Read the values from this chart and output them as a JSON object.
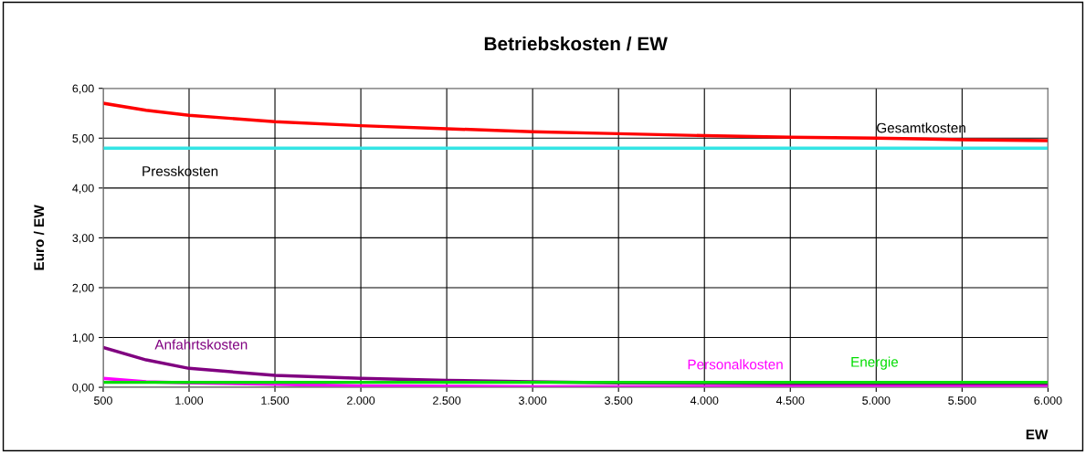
{
  "chart_data": {
    "type": "line",
    "title": "Betriebskosten / EW",
    "xlabel": "EW",
    "ylabel": "Euro / EW",
    "xlim": [
      500,
      6000
    ],
    "xticks": [
      {
        "value": 500,
        "label": "500"
      },
      {
        "value": 1000,
        "label": "1.000"
      },
      {
        "value": 1500,
        "label": "1.500"
      },
      {
        "value": 2000,
        "label": "2.000"
      },
      {
        "value": 2500,
        "label": "2.500"
      },
      {
        "value": 3000,
        "label": "3.000"
      },
      {
        "value": 3500,
        "label": "3.500"
      },
      {
        "value": 4000,
        "label": "4.000"
      },
      {
        "value": 4500,
        "label": "4.500"
      },
      {
        "value": 5000,
        "label": "5.000"
      },
      {
        "value": 5500,
        "label": "5.500"
      },
      {
        "value": 6000,
        "label": "6.000"
      }
    ],
    "ylim": [
      0,
      6
    ],
    "yticks": [
      {
        "value": 0,
        "label": "0,00"
      },
      {
        "value": 1,
        "label": "1,00"
      },
      {
        "value": 2,
        "label": "2,00"
      },
      {
        "value": 3,
        "label": "3,00"
      },
      {
        "value": 4,
        "label": "4,00"
      },
      {
        "value": 5,
        "label": "5,00"
      },
      {
        "value": 6,
        "label": "6,00"
      }
    ],
    "grid": true,
    "legend": false,
    "marker": "none",
    "line_style": "solid",
    "x": [
      500,
      750,
      1000,
      1500,
      2000,
      2500,
      3000,
      3500,
      4000,
      4500,
      5000,
      5500,
      6000
    ],
    "series": [
      {
        "color": "#ff0000",
        "values": [
          5.7,
          5.56,
          5.46,
          5.33,
          5.25,
          5.19,
          5.13,
          5.09,
          5.05,
          5.02,
          5.0,
          4.97,
          4.95
        ]
      },
      {
        "color": "#33e5e5",
        "values": [
          4.8,
          4.8,
          4.8,
          4.8,
          4.8,
          4.8,
          4.8,
          4.8,
          4.8,
          4.8,
          4.8,
          4.8,
          4.8
        ]
      },
      {
        "color": "#800080",
        "values": [
          0.8,
          0.55,
          0.38,
          0.24,
          0.18,
          0.14,
          0.11,
          0.09,
          0.08,
          0.07,
          0.06,
          0.05,
          0.05
        ]
      },
      {
        "color": "#ff00ff",
        "values": [
          0.18,
          0.11,
          0.09,
          0.06,
          0.03,
          0.02,
          0.01,
          0.01,
          0.01,
          0.01,
          0.01,
          0.01,
          0.01
        ]
      },
      {
        "color": "#00dd00",
        "values": [
          0.1,
          0.1,
          0.1,
          0.1,
          0.1,
          0.1,
          0.1,
          0.1,
          0.1,
          0.1,
          0.1,
          0.1,
          0.1
        ]
      }
    ],
    "annotations": [
      {
        "text": "Gesamtkosten",
        "x": 5000,
        "y": 5.0
      },
      {
        "text": "Presskosten",
        "x": 650,
        "y": 4.8
      },
      {
        "text": "Anfahrtskosten",
        "x": 800,
        "y": 0.55
      },
      {
        "text": "Personalkosten",
        "x": 3900,
        "y": 0.1
      },
      {
        "text": "Energie",
        "x": 4850,
        "y": 0.1
      }
    ]
  }
}
